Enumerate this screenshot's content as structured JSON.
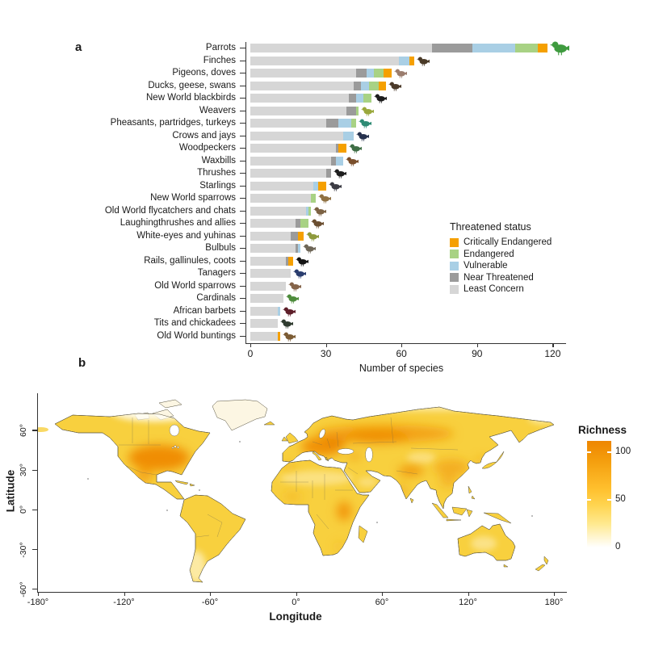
{
  "panels": {
    "a_label": "a",
    "b_label": "b"
  },
  "chart_data": [
    {
      "type": "bar",
      "orientation": "horizontal-stacked",
      "xlabel": "Number of species",
      "xlim": [
        0,
        125
      ],
      "xticks": [
        0,
        30,
        60,
        90,
        120
      ],
      "legend_title": "Threatened status",
      "legend_position": "right-middle",
      "draw_order": [
        "Least Concern",
        "Near Threatened",
        "Vulnerable",
        "Endangered",
        "Critically Endangered"
      ],
      "categories": [
        "Parrots",
        "Finches",
        "Pigeons, doves",
        "Ducks, geese, swans",
        "New World blackbirds",
        "Weavers",
        "Pheasants, partridges, turkeys",
        "Crows and jays",
        "Woodpeckers",
        "Waxbills",
        "Thrushes",
        "Starlings",
        "New World sparrows",
        "Old World flycatchers and chats",
        "Laughingthrushes and allies",
        "White-eyes and yuhinas",
        "Bulbuls",
        "Rails, gallinules, coots",
        "Tanagers",
        "Old World sparrows",
        "Cardinals",
        "African barbets",
        "Tits and chickadees",
        "Old World buntings"
      ],
      "series": [
        {
          "key": "cr",
          "name": "Critically Endangered",
          "color": "#F5A000",
          "values": [
            4,
            2,
            3,
            3,
            0,
            0,
            0,
            0,
            3,
            0,
            0,
            3,
            0,
            0,
            0,
            2,
            0,
            2,
            0,
            0,
            0,
            0,
            0,
            1
          ]
        },
        {
          "key": "en",
          "name": "Endangered",
          "color": "#A8D284",
          "values": [
            9,
            0,
            4,
            4,
            3,
            1,
            2,
            0,
            0,
            0,
            0,
            0,
            2,
            1,
            3,
            0,
            0,
            0,
            0,
            0,
            0,
            0,
            0,
            0
          ]
        },
        {
          "key": "vu",
          "name": "Vulnerable",
          "color": "#A9CFE5",
          "values": [
            17,
            4,
            3,
            3,
            3,
            0,
            5,
            4,
            0,
            3,
            0,
            2,
            0,
            1,
            0,
            0,
            1,
            0,
            0,
            0,
            0,
            1,
            0,
            0
          ]
        },
        {
          "key": "nt",
          "name": "Near Threatened",
          "color": "#9B9B9B",
          "values": [
            16,
            0,
            4,
            3,
            3,
            4,
            5,
            0,
            1,
            2,
            2,
            0,
            0,
            0,
            2,
            3,
            1,
            1,
            0,
            0,
            0,
            0,
            0,
            0
          ]
        },
        {
          "key": "lc",
          "name": "Least Concern",
          "color": "#D6D6D6",
          "values": [
            72,
            59,
            42,
            41,
            39,
            38,
            30,
            37,
            34,
            32,
            30,
            25,
            24,
            22,
            18,
            16,
            18,
            14,
            16,
            14,
            13,
            11,
            11,
            11
          ]
        }
      ],
      "totals": [
        118,
        65,
        56,
        54,
        48,
        43,
        42,
        41,
        38,
        37,
        32,
        30,
        26,
        24,
        23,
        21,
        20,
        17,
        16,
        14,
        13,
        12,
        11,
        12
      ],
      "bird_colors": [
        "#3f9b3f",
        "#4a3a28",
        "#9b7d6e",
        "#4b3a2a",
        "#1c1c1c",
        "#9aa83c",
        "#2e8b74",
        "#26324e",
        "#3f6e46",
        "#7a4f2c",
        "#1e1e1e",
        "#3c3c44",
        "#8f7142",
        "#7c6243",
        "#6b4e30",
        "#8e9a3d",
        "#6e6657",
        "#141414",
        "#2a3d6e",
        "#85644a",
        "#4e8c3c",
        "#5e1f2a",
        "#2f3b2f",
        "#7c5c34"
      ]
    },
    {
      "type": "heatmap",
      "subtype": "world-map-species-richness",
      "xlabel": "Longitude",
      "ylabel": "Latitude",
      "xticks": {
        "values": [
          -180,
          -120,
          -60,
          0,
          60,
          120,
          180
        ],
        "labels": [
          "-180°",
          "-120°",
          "-60°",
          "0°",
          "60°",
          "120°",
          "180°"
        ]
      },
      "yticks": {
        "values": [
          60,
          30,
          0,
          -30,
          -60
        ],
        "labels": [
          "60°",
          "30°",
          "0°",
          "-30°",
          "-60°"
        ]
      },
      "colorbar": {
        "title": "Richness",
        "tick_values": [
          100,
          50,
          0
        ],
        "tick_labels": [
          "100",
          "50",
          "0"
        ],
        "gradient_top_color": "#EE8600",
        "gradient_mid_color": "#FFC93C",
        "gradient_bottom_color": "#FFFFFF"
      },
      "high_richness_regions": [
        "Eastern United States",
        "Central and Eastern Europe",
        "Western Russia",
        "Himalaya and northern India",
        "Eastern China",
        "East Africa",
        "Mexico"
      ],
      "low_richness_regions": [
        "Arctic Canada",
        "Greenland",
        "Sahara",
        "Patagonia",
        "Central Australia"
      ]
    }
  ]
}
